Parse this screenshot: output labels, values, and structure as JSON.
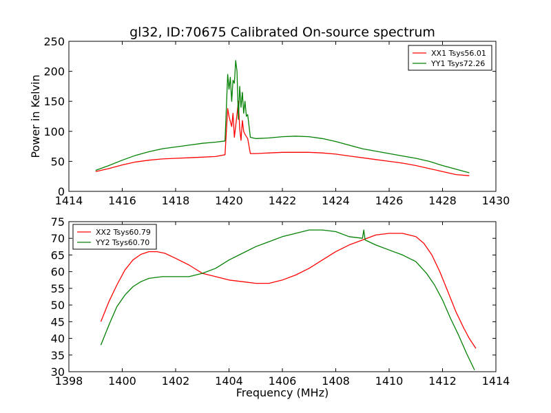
{
  "title": "gl32, ID:70675 Calibrated On-source spectrum",
  "chart_data": [
    {
      "type": "line",
      "xlabel": "",
      "ylabel": "Power in Kelvin",
      "xlim": [
        1414,
        1430
      ],
      "ylim": [
        0,
        250
      ],
      "xticks": [
        1414,
        1416,
        1418,
        1420,
        1422,
        1424,
        1426,
        1428,
        1430
      ],
      "yticks": [
        0,
        50,
        100,
        150,
        200,
        250
      ],
      "grid": false,
      "legend_position": "top-right",
      "series": [
        {
          "name": "XX1 Tsys56.01",
          "color": "#ff0000",
          "x": [
            1415.0,
            1415.5,
            1416.0,
            1416.5,
            1417.0,
            1417.5,
            1418.0,
            1418.5,
            1419.0,
            1419.5,
            1419.85,
            1419.95,
            1420.0,
            1420.1,
            1420.15,
            1420.2,
            1420.3,
            1420.35,
            1420.4,
            1420.45,
            1420.5,
            1420.55,
            1420.6,
            1420.7,
            1420.8,
            1421.0,
            1421.5,
            1422.0,
            1422.5,
            1423.0,
            1423.5,
            1424.0,
            1424.5,
            1425.0,
            1425.5,
            1426.0,
            1426.5,
            1427.0,
            1427.5,
            1428.0,
            1428.5,
            1429.0
          ],
          "values": [
            33,
            38,
            44,
            49,
            52,
            54,
            55,
            56,
            57,
            58,
            61,
            138,
            125,
            108,
            130,
            90,
            128,
            150,
            105,
            85,
            118,
            100,
            95,
            88,
            63,
            63,
            64,
            65,
            65,
            65,
            64,
            62,
            59,
            56,
            53,
            50,
            47,
            43,
            38,
            33,
            28,
            26
          ]
        },
        {
          "name": "YY1 Tsys72.26",
          "color": "#008000",
          "x": [
            1415.0,
            1415.5,
            1416.0,
            1416.5,
            1417.0,
            1417.5,
            1418.0,
            1418.5,
            1419.0,
            1419.5,
            1419.85,
            1419.95,
            1420.0,
            1420.05,
            1420.1,
            1420.15,
            1420.2,
            1420.25,
            1420.3,
            1420.35,
            1420.4,
            1420.45,
            1420.5,
            1420.55,
            1420.6,
            1420.65,
            1420.7,
            1420.8,
            1421.0,
            1421.5,
            1422.0,
            1422.5,
            1423.0,
            1423.5,
            1424.0,
            1424.5,
            1425.0,
            1425.5,
            1426.0,
            1426.5,
            1427.0,
            1427.5,
            1428.0,
            1428.5,
            1429.0
          ],
          "values": [
            35,
            43,
            52,
            60,
            66,
            71,
            74,
            77,
            80,
            82,
            84,
            195,
            170,
            190,
            150,
            185,
            180,
            218,
            200,
            120,
            175,
            140,
            165,
            130,
            150,
            125,
            128,
            90,
            88,
            89,
            91,
            92,
            91,
            88,
            83,
            77,
            71,
            67,
            63,
            59,
            55,
            50,
            43,
            37,
            31
          ]
        }
      ]
    },
    {
      "type": "line",
      "xlabel": "Frequency (MHz)",
      "ylabel": "",
      "xlim": [
        1398,
        1414
      ],
      "ylim": [
        30,
        75
      ],
      "xticks": [
        1398,
        1400,
        1402,
        1404,
        1406,
        1408,
        1410,
        1412,
        1414
      ],
      "yticks": [
        30,
        35,
        40,
        45,
        50,
        55,
        60,
        65,
        70,
        75
      ],
      "grid": false,
      "legend_position": "top-left",
      "series": [
        {
          "name": "XX2 Tsys60.79",
          "color": "#ff0000",
          "x": [
            1399.2,
            1399.5,
            1399.8,
            1400.1,
            1400.4,
            1400.7,
            1401.0,
            1401.3,
            1401.6,
            1402.0,
            1402.5,
            1403.0,
            1403.5,
            1404.0,
            1404.5,
            1405.0,
            1405.5,
            1406.0,
            1406.5,
            1407.0,
            1407.5,
            1408.0,
            1408.5,
            1409.0,
            1409.5,
            1410.0,
            1410.5,
            1411.0,
            1411.3,
            1411.6,
            1411.9,
            1412.2,
            1412.5,
            1412.8,
            1413.0,
            1413.25
          ],
          "values": [
            45,
            51,
            56,
            60.5,
            63.5,
            65.2,
            66,
            66,
            65.5,
            64,
            62,
            59.5,
            58.5,
            57.5,
            57,
            56.5,
            56.5,
            57.5,
            59,
            61,
            63.5,
            66,
            68,
            69.5,
            71,
            71.5,
            71.5,
            70.5,
            68.5,
            65,
            60,
            54,
            48,
            43,
            40,
            37
          ]
        },
        {
          "name": "YY2 Tsys60.70",
          "color": "#008000",
          "x": [
            1399.2,
            1399.5,
            1399.8,
            1400.1,
            1400.4,
            1400.7,
            1401.0,
            1401.5,
            1402.0,
            1402.5,
            1403.0,
            1403.5,
            1404.0,
            1404.5,
            1405.0,
            1405.5,
            1406.0,
            1406.5,
            1407.0,
            1407.5,
            1408.0,
            1408.5,
            1409.0,
            1409.05,
            1409.1,
            1409.5,
            1410.0,
            1410.5,
            1411.0,
            1411.4,
            1411.7,
            1412.0,
            1412.3,
            1412.6,
            1412.9,
            1413.2
          ],
          "values": [
            38,
            44,
            49.5,
            53,
            55.5,
            57,
            58,
            58.5,
            58.5,
            58.5,
            59.5,
            61,
            63.5,
            65.5,
            67.5,
            69,
            70.5,
            71.5,
            72.5,
            72.5,
            72,
            70.5,
            70,
            72.5,
            69.5,
            68,
            66.5,
            65,
            63,
            59.5,
            56,
            51.5,
            46,
            41,
            35.5,
            30.5
          ]
        }
      ]
    }
  ]
}
